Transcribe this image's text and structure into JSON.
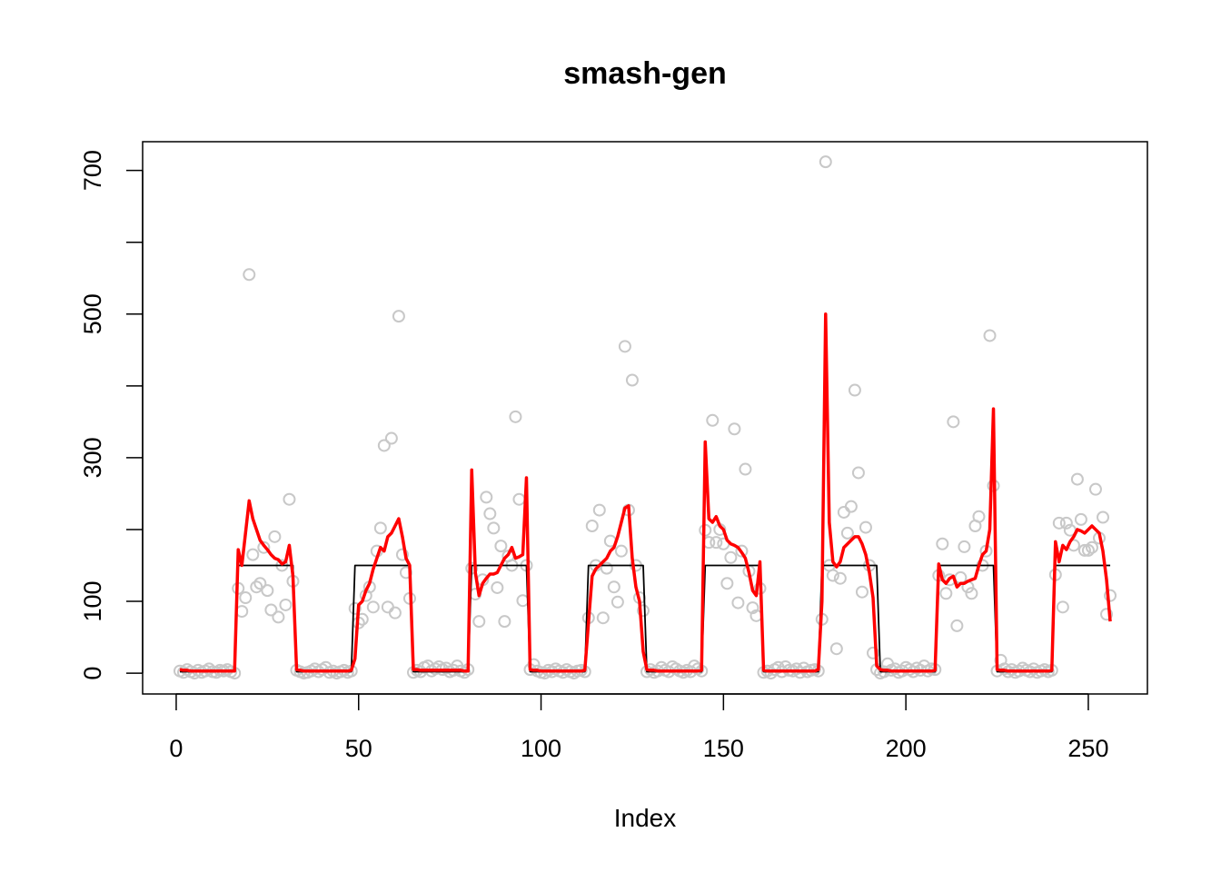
{
  "chart_data": {
    "type": "line",
    "title": "smash-gen",
    "xlabel": "Index",
    "xlim": [
      -9.2,
      266.2
    ],
    "ylim": [
      -29,
      740
    ],
    "xticks": [
      0,
      50,
      100,
      150,
      200,
      250
    ],
    "yticks": [
      0,
      100,
      300,
      500,
      700
    ],
    "yticks_unlabeled": [
      200,
      400,
      600
    ],
    "x": [
      1,
      2,
      3,
      4,
      5,
      6,
      7,
      8,
      9,
      10,
      11,
      12,
      13,
      14,
      15,
      16,
      17,
      18,
      19,
      20,
      21,
      22,
      23,
      24,
      25,
      26,
      27,
      28,
      29,
      30,
      31,
      32,
      33,
      34,
      35,
      36,
      37,
      38,
      39,
      40,
      41,
      42,
      43,
      44,
      45,
      46,
      47,
      48,
      49,
      50,
      51,
      52,
      53,
      54,
      55,
      56,
      57,
      58,
      59,
      60,
      61,
      62,
      63,
      64,
      65,
      66,
      67,
      68,
      69,
      70,
      71,
      72,
      73,
      74,
      75,
      76,
      77,
      78,
      79,
      80,
      81,
      82,
      83,
      84,
      85,
      86,
      87,
      88,
      89,
      90,
      91,
      92,
      93,
      94,
      95,
      96,
      97,
      98,
      99,
      100,
      101,
      102,
      103,
      104,
      105,
      106,
      107,
      108,
      109,
      110,
      111,
      112,
      113,
      114,
      115,
      116,
      117,
      118,
      119,
      120,
      121,
      122,
      123,
      124,
      125,
      126,
      127,
      128,
      129,
      130,
      131,
      132,
      133,
      134,
      135,
      136,
      137,
      138,
      139,
      140,
      141,
      142,
      143,
      144,
      145,
      146,
      147,
      148,
      149,
      150,
      151,
      152,
      153,
      154,
      155,
      156,
      157,
      158,
      159,
      160,
      161,
      162,
      163,
      164,
      165,
      166,
      167,
      168,
      169,
      170,
      171,
      172,
      173,
      174,
      175,
      176,
      177,
      178,
      179,
      180,
      181,
      182,
      183,
      184,
      185,
      186,
      187,
      188,
      189,
      190,
      191,
      192,
      193,
      194,
      195,
      196,
      197,
      198,
      199,
      200,
      201,
      202,
      203,
      204,
      205,
      206,
      207,
      208,
      209,
      210,
      211,
      212,
      213,
      214,
      215,
      216,
      217,
      218,
      219,
      220,
      221,
      222,
      223,
      224,
      225,
      226,
      227,
      228,
      229,
      230,
      231,
      232,
      233,
      234,
      235,
      236,
      237,
      238,
      239,
      240,
      241,
      242,
      243,
      244,
      245,
      246,
      247,
      248,
      249,
      250,
      251,
      252,
      253,
      254,
      255,
      256
    ],
    "series": [
      {
        "kind": "points",
        "color": "#c8c8c8",
        "values": [
          3,
          1,
          5,
          2,
          0,
          4,
          1,
          3,
          6,
          2,
          1,
          4,
          3,
          5,
          2,
          0,
          118,
          86,
          105,
          555,
          165,
          120,
          125,
          175,
          115,
          88,
          190,
          78,
          150,
          95,
          242,
          128,
          4,
          2,
          0,
          1,
          3,
          6,
          2,
          5,
          8,
          1,
          3,
          0,
          2,
          4,
          1,
          3,
          90,
          70,
          75,
          108,
          120,
          92,
          170,
          202,
          317,
          92,
          327,
          84,
          497,
          165,
          140,
          104,
          1,
          4,
          2,
          8,
          10,
          3,
          6,
          9,
          5,
          7,
          2,
          4,
          10,
          3,
          1,
          5,
          146,
          110,
          72,
          130,
          245,
          222,
          202,
          119,
          177,
          72,
          163,
          150,
          357,
          242,
          101,
          150,
          5,
          12,
          3,
          1,
          0,
          4,
          2,
          6,
          3,
          1,
          5,
          2,
          0,
          3,
          4,
          2,
          77,
          205,
          150,
          227,
          77,
          146,
          184,
          120,
          99,
          170,
          455,
          227,
          408,
          150,
          105,
          87,
          2,
          5,
          1,
          3,
          8,
          4,
          2,
          9,
          6,
          3,
          1,
          4,
          2,
          10,
          6,
          3,
          199,
          182,
          352,
          182,
          200,
          180,
          125,
          161,
          340,
          98,
          170,
          284,
          142,
          91,
          80,
          118,
          1,
          3,
          0,
          5,
          8,
          2,
          9,
          4,
          3,
          6,
          1,
          7,
          2,
          4,
          5,
          3,
          75,
          712,
          150,
          136,
          34,
          132,
          224,
          195,
          232,
          394,
          279,
          113,
          203,
          150,
          28,
          5,
          0,
          2,
          13,
          4,
          6,
          1,
          3,
          8,
          5,
          2,
          7,
          4,
          10,
          3,
          6,
          5,
          136,
          180,
          111,
          130,
          350,
          66,
          133,
          176,
          120,
          111,
          205,
          218,
          150,
          170,
          470,
          261,
          3,
          18,
          6,
          2,
          5,
          1,
          3,
          7,
          4,
          2,
          6,
          1,
          3,
          5,
          2,
          4,
          137,
          209,
          92,
          209,
          199,
          178,
          270,
          214,
          171,
          171,
          175,
          256,
          188,
          217,
          82,
          108
        ]
      },
      {
        "kind": "line",
        "color": "#000000",
        "width": 1.8,
        "values": [
          2,
          2,
          2,
          2,
          2,
          2,
          2,
          2,
          2,
          2,
          2,
          2,
          2,
          2,
          2,
          2,
          150,
          150,
          150,
          150,
          150,
          150,
          150,
          150,
          150,
          150,
          150,
          150,
          150,
          150,
          150,
          150,
          2,
          2,
          2,
          2,
          2,
          2,
          2,
          2,
          2,
          2,
          2,
          2,
          2,
          2,
          2,
          2,
          150,
          150,
          150,
          150,
          150,
          150,
          150,
          150,
          150,
          150,
          150,
          150,
          150,
          150,
          150,
          150,
          2,
          2,
          2,
          2,
          2,
          2,
          2,
          2,
          2,
          2,
          2,
          2,
          2,
          2,
          2,
          2,
          150,
          150,
          150,
          150,
          150,
          150,
          150,
          150,
          150,
          150,
          150,
          150,
          150,
          150,
          150,
          150,
          2,
          2,
          2,
          2,
          2,
          2,
          2,
          2,
          2,
          2,
          2,
          2,
          2,
          2,
          2,
          2,
          150,
          150,
          150,
          150,
          150,
          150,
          150,
          150,
          150,
          150,
          150,
          150,
          150,
          150,
          150,
          150,
          2,
          2,
          2,
          2,
          2,
          2,
          2,
          2,
          2,
          2,
          2,
          2,
          2,
          2,
          2,
          2,
          150,
          150,
          150,
          150,
          150,
          150,
          150,
          150,
          150,
          150,
          150,
          150,
          150,
          150,
          150,
          150,
          2,
          2,
          2,
          2,
          2,
          2,
          2,
          2,
          2,
          2,
          2,
          2,
          2,
          2,
          2,
          2,
          150,
          150,
          150,
          150,
          150,
          150,
          150,
          150,
          150,
          150,
          150,
          150,
          150,
          150,
          150,
          150,
          2,
          2,
          2,
          2,
          2,
          2,
          2,
          2,
          2,
          2,
          2,
          2,
          2,
          2,
          2,
          2,
          150,
          150,
          150,
          150,
          150,
          150,
          150,
          150,
          150,
          150,
          150,
          150,
          150,
          150,
          150,
          150,
          2,
          2,
          2,
          2,
          2,
          2,
          2,
          2,
          2,
          2,
          2,
          2,
          2,
          2,
          2,
          2,
          150,
          150,
          150,
          150,
          150,
          150,
          150,
          150,
          150,
          150,
          150,
          150,
          150,
          150,
          150,
          150
        ]
      },
      {
        "kind": "line",
        "color": "#ff0000",
        "width": 3.5,
        "values": [
          5,
          4,
          4,
          3,
          3,
          3,
          3,
          3,
          3,
          3,
          3,
          3,
          3,
          3,
          3,
          3,
          172,
          150,
          195,
          240,
          215,
          200,
          185,
          178,
          172,
          165,
          160,
          158,
          152,
          155,
          178,
          135,
          5,
          4,
          3,
          3,
          3,
          3,
          3,
          3,
          3,
          3,
          3,
          3,
          3,
          3,
          3,
          4,
          20,
          95,
          100,
          115,
          125,
          145,
          160,
          175,
          170,
          190,
          195,
          205,
          215,
          190,
          160,
          150,
          5,
          5,
          4,
          4,
          4,
          4,
          4,
          4,
          4,
          4,
          4,
          4,
          4,
          4,
          3,
          3,
          283,
          140,
          108,
          125,
          132,
          138,
          138,
          140,
          150,
          160,
          165,
          175,
          160,
          162,
          165,
          272,
          5,
          4,
          4,
          3,
          3,
          3,
          3,
          3,
          3,
          3,
          3,
          3,
          3,
          3,
          3,
          4,
          70,
          135,
          145,
          150,
          155,
          160,
          170,
          175,
          190,
          210,
          230,
          233,
          160,
          120,
          100,
          30,
          5,
          4,
          4,
          3,
          3,
          3,
          3,
          3,
          3,
          3,
          3,
          3,
          3,
          3,
          3,
          4,
          322,
          215,
          210,
          218,
          205,
          200,
          185,
          180,
          178,
          175,
          168,
          160,
          140,
          115,
          108,
          155,
          4,
          3,
          3,
          3,
          3,
          3,
          3,
          3,
          3,
          3,
          3,
          3,
          3,
          3,
          3,
          5,
          100,
          500,
          210,
          155,
          148,
          155,
          175,
          180,
          185,
          190,
          190,
          180,
          165,
          140,
          105,
          10,
          5,
          4,
          4,
          3,
          3,
          3,
          3,
          3,
          3,
          3,
          3,
          3,
          3,
          3,
          3,
          4,
          152,
          130,
          125,
          132,
          135,
          120,
          125,
          125,
          128,
          130,
          132,
          150,
          165,
          170,
          200,
          368,
          5,
          4,
          4,
          3,
          3,
          3,
          3,
          3,
          3,
          3,
          3,
          3,
          3,
          3,
          3,
          4,
          183,
          155,
          178,
          172,
          183,
          190,
          200,
          198,
          195,
          200,
          205,
          200,
          195,
          170,
          130,
          72
        ]
      }
    ]
  }
}
